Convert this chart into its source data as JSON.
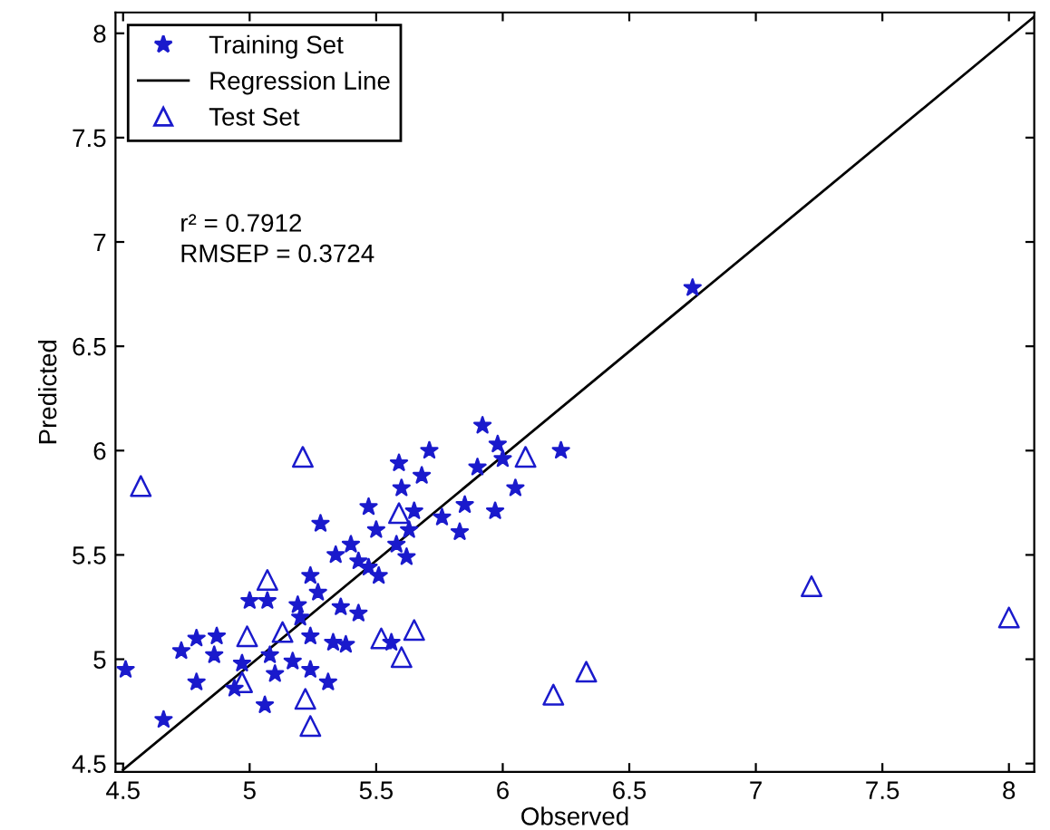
{
  "chart_data": {
    "type": "scatter",
    "xlabel": "Observed",
    "ylabel": "Predicted",
    "xlim": [
      4.47,
      8.1
    ],
    "ylim": [
      4.46,
      8.1
    ],
    "xticks": [
      4.5,
      5,
      5.5,
      6,
      6.5,
      7,
      7.5,
      8
    ],
    "yticks": [
      4.5,
      5,
      5.5,
      6,
      6.5,
      7,
      7.5,
      8
    ],
    "grid": false,
    "legend": "top left",
    "annotations": [
      "r² = 0.7912",
      "RMSEP = 0.3724"
    ],
    "series": [
      {
        "name": "Training Set",
        "marker": "star",
        "color": "#1a1acc",
        "x": [
          4.51,
          4.66,
          4.73,
          4.79,
          4.79,
          4.86,
          4.87,
          4.94,
          4.97,
          5.0,
          5.06,
          5.07,
          5.08,
          5.1,
          5.17,
          5.19,
          5.2,
          5.24,
          5.24,
          5.24,
          5.27,
          5.28,
          5.31,
          5.33,
          5.34,
          5.36,
          5.38,
          5.4,
          5.43,
          5.43,
          5.47,
          5.47,
          5.5,
          5.51,
          5.56,
          5.58,
          5.59,
          5.6,
          5.62,
          5.63,
          5.65,
          5.68,
          5.71,
          5.76,
          5.83,
          5.85,
          5.9,
          5.92,
          5.97,
          5.98,
          6.0,
          6.05,
          6.23,
          6.75
        ],
        "values": [
          4.95,
          4.71,
          5.04,
          5.1,
          4.89,
          5.02,
          5.11,
          4.86,
          4.98,
          5.28,
          4.78,
          5.28,
          5.02,
          4.93,
          4.99,
          5.26,
          5.2,
          4.95,
          5.4,
          5.11,
          5.32,
          5.65,
          4.89,
          5.08,
          5.5,
          5.25,
          5.07,
          5.55,
          5.22,
          5.47,
          5.73,
          5.44,
          5.62,
          5.4,
          5.08,
          5.55,
          5.94,
          5.82,
          5.49,
          5.62,
          5.71,
          5.88,
          6.0,
          5.68,
          5.61,
          5.74,
          5.92,
          6.12,
          5.71,
          6.03,
          5.96,
          5.82,
          6.0,
          6.78
        ]
      },
      {
        "name": "Regression Line",
        "type": "line",
        "color": "#000000",
        "x": [
          4.5,
          8.1
        ],
        "values": [
          4.47,
          8.08
        ]
      },
      {
        "name": "Test Set",
        "marker": "triangle",
        "color": "#1a1acc",
        "x": [
          4.57,
          5.21,
          5.07,
          4.99,
          5.13,
          4.97,
          5.22,
          5.24,
          5.52,
          5.6,
          5.65,
          5.59,
          6.09,
          6.2,
          6.33,
          7.22,
          8.0
        ],
        "values": [
          5.83,
          5.97,
          5.38,
          5.11,
          5.13,
          4.89,
          4.81,
          4.68,
          5.1,
          5.01,
          5.14,
          5.7,
          5.97,
          4.83,
          4.94,
          5.35,
          5.2
        ]
      }
    ]
  }
}
